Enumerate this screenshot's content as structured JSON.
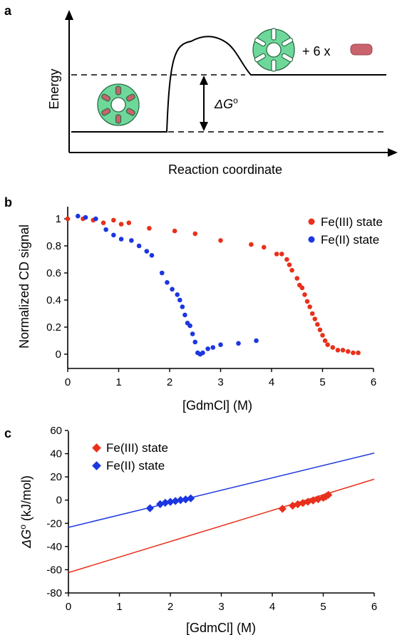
{
  "panels": {
    "a": {
      "label": "a",
      "ylabel": "Energy",
      "xlabel": "Reaction coordinate",
      "delta_g": "ΔG",
      "delta_g_sup": "o",
      "products": "+ 6 x"
    },
    "b": {
      "label": "b"
    },
    "c": {
      "label": "c"
    }
  },
  "colors": {
    "fe3": "#e8301c",
    "fe2": "#1c36e0",
    "protein": "#6ed89a",
    "heme": "#c9636c"
  },
  "chart_data": [
    {
      "type": "scatter",
      "panel": "b",
      "xlabel": "[GdmCl] (M)",
      "ylabel": "Normalized CD signal",
      "xlim": [
        0,
        6
      ],
      "ylim": [
        -0.05,
        1.08
      ],
      "xticks": [
        0,
        1,
        2,
        3,
        4,
        5,
        6
      ],
      "yticks": [
        0,
        0.2,
        0.4,
        0.6,
        0.8,
        1
      ],
      "ytick_labels": [
        "0",
        "0.2",
        "0.4",
        "0.6",
        "0.8",
        "1"
      ],
      "legend_position": "top-right",
      "series": [
        {
          "name": "Fe(III) state",
          "color": "#e8301c",
          "marker": "circle",
          "points": [
            [
              0,
              1.0
            ],
            [
              0.3,
              1.0
            ],
            [
              0.5,
              0.99
            ],
            [
              0.7,
              0.97
            ],
            [
              0.9,
              0.99
            ],
            [
              1.05,
              0.96
            ],
            [
              1.2,
              0.97
            ],
            [
              1.6,
              0.93
            ],
            [
              2.1,
              0.91
            ],
            [
              2.5,
              0.89
            ],
            [
              3.0,
              0.84
            ],
            [
              3.6,
              0.81
            ],
            [
              3.85,
              0.79
            ],
            [
              4.1,
              0.74
            ],
            [
              4.2,
              0.74
            ],
            [
              4.3,
              0.7
            ],
            [
              4.35,
              0.66
            ],
            [
              4.4,
              0.62
            ],
            [
              4.5,
              0.56
            ],
            [
              4.55,
              0.51
            ],
            [
              4.6,
              0.49
            ],
            [
              4.65,
              0.44
            ],
            [
              4.7,
              0.39
            ],
            [
              4.75,
              0.35
            ],
            [
              4.8,
              0.3
            ],
            [
              4.85,
              0.26
            ],
            [
              4.9,
              0.22
            ],
            [
              4.95,
              0.18
            ],
            [
              5.0,
              0.14
            ],
            [
              5.05,
              0.1
            ],
            [
              5.1,
              0.07
            ],
            [
              5.2,
              0.05
            ],
            [
              5.3,
              0.03
            ],
            [
              5.4,
              0.03
            ],
            [
              5.5,
              0.02
            ],
            [
              5.6,
              0.01
            ],
            [
              5.7,
              0.01
            ]
          ]
        },
        {
          "name": "Fe(II) state",
          "color": "#1c36e0",
          "marker": "circle",
          "points": [
            [
              0.2,
              1.02
            ],
            [
              0.35,
              1.01
            ],
            [
              0.55,
              1.0
            ],
            [
              0.75,
              0.92
            ],
            [
              0.9,
              0.88
            ],
            [
              1.05,
              0.85
            ],
            [
              1.25,
              0.84
            ],
            [
              1.4,
              0.8
            ],
            [
              1.55,
              0.76
            ],
            [
              1.65,
              0.73
            ],
            [
              1.85,
              0.6
            ],
            [
              1.95,
              0.53
            ],
            [
              2.05,
              0.48
            ],
            [
              2.15,
              0.44
            ],
            [
              2.2,
              0.4
            ],
            [
              2.25,
              0.35
            ],
            [
              2.3,
              0.29
            ],
            [
              2.35,
              0.23
            ],
            [
              2.4,
              0.21
            ],
            [
              2.45,
              0.15
            ],
            [
              2.5,
              0.09
            ],
            [
              2.55,
              0.01
            ],
            [
              2.6,
              0.0
            ],
            [
              2.65,
              0.01
            ],
            [
              2.75,
              0.04
            ],
            [
              2.85,
              0.05
            ],
            [
              3.0,
              0.07
            ],
            [
              3.35,
              0.08
            ],
            [
              3.7,
              0.1
            ]
          ]
        }
      ]
    },
    {
      "type": "scatter",
      "panel": "c",
      "xlabel": "[GdmCl] (M)",
      "ylabel": "ΔG",
      "ylabel_sup": "o",
      "ylabel_unit": " (kJ/mol)",
      "xlim": [
        0,
        6
      ],
      "ylim": [
        -80,
        60
      ],
      "xticks": [
        0,
        1,
        2,
        3,
        4,
        5,
        6
      ],
      "yticks": [
        -80,
        -60,
        -40,
        -20,
        0,
        20,
        40,
        60
      ],
      "legend_position": "top-left",
      "series": [
        {
          "name": "Fe(III) state",
          "color": "#e8301c",
          "marker": "diamond",
          "points": [
            [
              4.2,
              -7.5
            ],
            [
              4.4,
              -4.8
            ],
            [
              4.5,
              -3.6
            ],
            [
              4.6,
              -2.5
            ],
            [
              4.7,
              -1.4
            ],
            [
              4.8,
              -0.3
            ],
            [
              4.9,
              0.8
            ],
            [
              5.0,
              2.0
            ],
            [
              5.05,
              3.1
            ],
            [
              5.1,
              4.5
            ]
          ],
          "fit": {
            "x": [
              0,
              6
            ],
            "y": [
              -62.5,
              18
            ]
          }
        },
        {
          "name": "Fe(II) state",
          "color": "#1c36e0",
          "marker": "diamond",
          "points": [
            [
              1.6,
              -7.0
            ],
            [
              1.8,
              -3.5
            ],
            [
              1.9,
              -2.3
            ],
            [
              2.0,
              -1.5
            ],
            [
              2.1,
              -0.8
            ],
            [
              2.2,
              0.0
            ],
            [
              2.3,
              0.6
            ],
            [
              2.4,
              1.5
            ]
          ],
          "fit": {
            "x": [
              0,
              6
            ],
            "y": [
              -23.5,
              40.5
            ]
          }
        }
      ]
    }
  ]
}
